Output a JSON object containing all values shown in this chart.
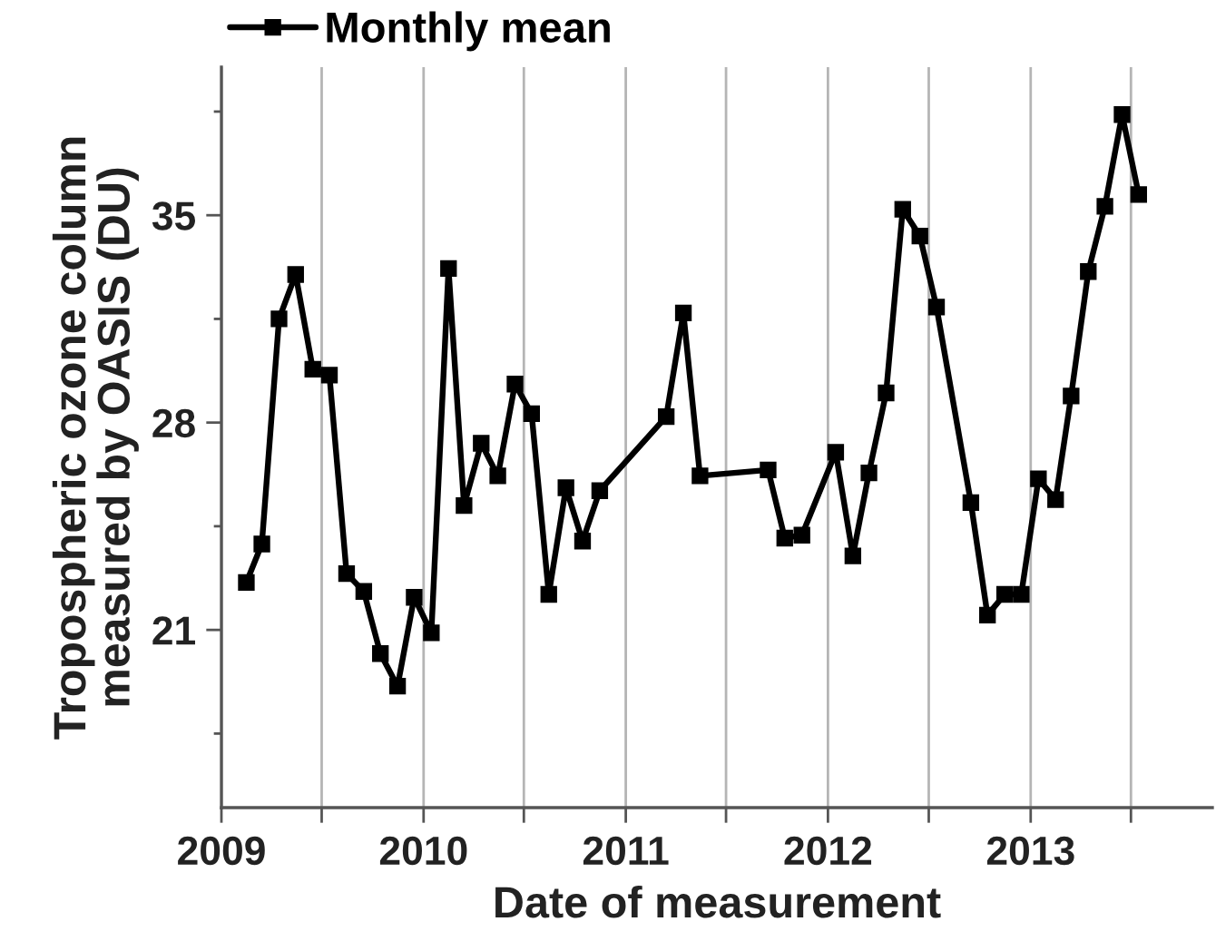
{
  "chart_data": {
    "type": "line",
    "xlabel": "Date of measurement",
    "ylabel": "Tropospheric ozone column\nmeasured by OASIS (DU)",
    "x": [
      "2009-02-15",
      "2009-03-15",
      "2009-04-15",
      "2009-05-15",
      "2009-06-15",
      "2009-07-15",
      "2009-08-15",
      "2009-09-15",
      "2009-10-15",
      "2009-11-15",
      "2009-12-15",
      "2010-01-15",
      "2010-02-15",
      "2010-03-15",
      "2010-04-15",
      "2010-05-15",
      "2010-06-15",
      "2010-07-15",
      "2010-08-15",
      "2010-09-15",
      "2010-10-15",
      "2010-11-15",
      "2011-03-15",
      "2011-04-15",
      "2011-05-15",
      "2011-09-15",
      "2011-10-15",
      "2011-11-15",
      "2012-01-15",
      "2012-02-15",
      "2012-03-15",
      "2012-04-15",
      "2012-05-15",
      "2012-06-15",
      "2012-07-15",
      "2012-09-15",
      "2012-10-15",
      "2012-11-15",
      "2012-12-15",
      "2013-01-15",
      "2013-02-15",
      "2013-03-15",
      "2013-04-15",
      "2013-05-15",
      "2013-06-15",
      "2013-07-15"
    ],
    "series": [
      {
        "name": "Monthly mean",
        "color": "#000000",
        "values": [
          22.6,
          23.9,
          31.5,
          33.0,
          29.8,
          29.6,
          22.9,
          22.3,
          20.2,
          19.1,
          22.1,
          20.9,
          33.2,
          25.2,
          27.3,
          26.2,
          29.3,
          28.3,
          22.2,
          25.8,
          24.0,
          25.7,
          28.2,
          31.7,
          26.2,
          26.4,
          24.1,
          24.2,
          27.0,
          23.5,
          26.3,
          29.0,
          35.2,
          34.3,
          31.9,
          25.3,
          21.5,
          22.2,
          22.2,
          26.1,
          25.4,
          28.9,
          33.1,
          35.3,
          38.4,
          35.7
        ]
      }
    ],
    "xlim": [
      "2009",
      "2013-11-25"
    ],
    "xticks": [
      {
        "value": "2009",
        "label": "2009"
      },
      {
        "value": "2009-07",
        "label": null
      },
      {
        "value": "2010",
        "label": "2010"
      },
      {
        "value": "2010-07",
        "label": null
      },
      {
        "value": "2011",
        "label": "2011"
      },
      {
        "value": "2011-07",
        "label": null
      },
      {
        "value": "2012",
        "label": "2012"
      },
      {
        "value": "2012-07",
        "label": null
      },
      {
        "value": "2013",
        "label": "2013"
      },
      {
        "value": "2013-07",
        "label": null
      }
    ],
    "ylim": [
      15,
      40
    ],
    "yticks": [
      {
        "value": 17.5,
        "label": null
      },
      21,
      {
        "value": 24.5,
        "label": null
      },
      28,
      {
        "value": 31.5,
        "label": null
      },
      35,
      {
        "value": 38.5,
        "label": null
      }
    ],
    "grid": "x",
    "legend": "top left",
    "marker": "square",
    "line_style": "solid"
  }
}
